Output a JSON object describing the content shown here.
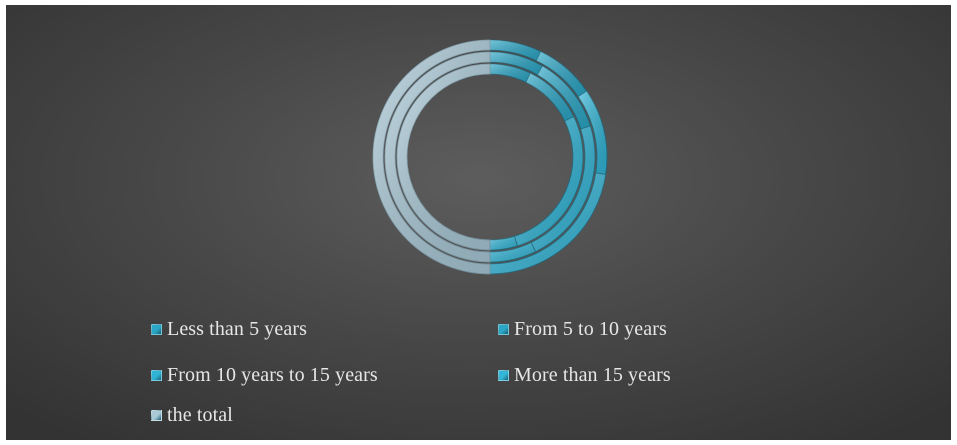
{
  "chart_data": {
    "type": "donut",
    "categories": [
      "Less than 5 years",
      "From 5 to 10 years",
      "From 10 years to 15 years",
      "More than 15 years",
      "the total"
    ],
    "series": [
      {
        "values": [
          6,
          7,
          10,
          19,
          42
        ]
      },
      {
        "values": [
          7,
          10,
          19,
          6,
          42
        ]
      },
      {
        "values": [
          6,
          9,
          23,
          4,
          42
        ]
      }
    ],
    "colors": {
      "Less than 5 years": "#2aa6c6",
      "From 5 to 10 years": "#2aa6c6",
      "From 10 years to 15 years": "#2fb4d6",
      "More than 15 years": "#33b6d8",
      "the total": "#a9c9d7"
    },
    "legend_position": "bottom",
    "grid": false
  }
}
